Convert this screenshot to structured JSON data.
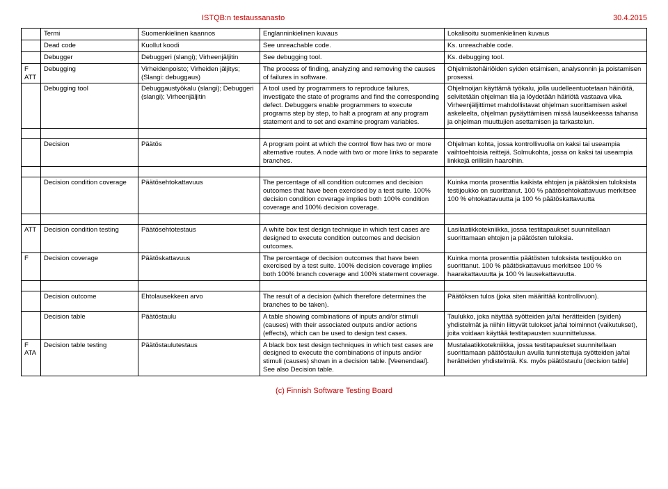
{
  "header": {
    "title": "ISTQB:n testaussanasto",
    "date": "30.4.2015"
  },
  "footer": "(c) Finnish Software Testing Board",
  "columns": [
    "",
    "Termi",
    "Suomenkielinen kaannos",
    "Englanninkielinen kuvaus",
    "Lokalisoitu suomenkielinen kuvaus"
  ],
  "groups": [
    {
      "rows": [
        {
          "c0": "",
          "c1": "Dead code",
          "c2": "Kuollut koodi",
          "c3": "See unreachable code.",
          "c4": "Ks. unreachable code."
        },
        {
          "c0": "",
          "c1": "Debugger",
          "c2": "Debuggeri (slangi); Virheenjäljitin",
          "c3": "See debugging tool.",
          "c4": "Ks. debugging tool."
        },
        {
          "c0": "F ATT",
          "c1": "Debugging",
          "c2": "Virheidenpoisto; Virheiden jäljitys; (Slangi: debuggaus)",
          "c3": "The process of finding, analyzing and removing the causes of failures in software.",
          "c4": "Ohjelmistohäiriöiden syiden etsimisen, analysonnin ja poistamisen prosessi."
        },
        {
          "c0": "",
          "c1": "Debugging tool",
          "c2": "Debuggaustyökalu (slangi); Debuggeri (slangi); Virheenjäljitin",
          "c3": "A tool used by programmers to reproduce failures, investigate the state of programs and find the corresponding defect. Debuggers enable programmers to execute programs step by step, to halt a program at any program statement and to set and examine program variables.",
          "c4": "Ohjelmoijan käyttämä työkalu, jolla uudelleentuotetaan häiriöitä, selvitetään ohjelman tila ja löydetään häiriötä vastaava vika. Virheenjäljittimet mahdollistavat ohjelman suorittamisen askel askeleelta, ohjelman pysäyttämisen missä lausekkeessa tahansa ja ohjelman muuttujien asettamisen ja tarkastelun."
        }
      ]
    },
    {
      "rows": [
        {
          "c0": "",
          "c1": "Decision",
          "c2": "Päätös",
          "c3": "A program point at which the control flow has two or more alternative routes. A node with two or more links to separate branches.",
          "c4": "Ohjelman kohta, jossa kontrollivuolla on kaksi tai useampia vaihtoehtoisia reittejä. Solmukohta, jossa on kaksi tai useampia linkkejä erillisiin haaroihin."
        }
      ]
    },
    {
      "rows": [
        {
          "c0": "",
          "c1": "Decision condition coverage",
          "c2": "Päätösehtokattavuus",
          "c3": "The percentage of all condition outcomes and decision outcomes that have been exercised by a test suite. 100% decision condition coverage implies both 100% condition coverage and 100% decision coverage.",
          "c4": "Kuinka monta prosenttia kaikista ehtojen ja päätöksien tuloksista testijoukko on suorittanut. 100 % päätösehtokattavuus merkitsee 100 % ehtokattavuutta ja 100 % päätöskattavuutta"
        }
      ]
    },
    {
      "rows": [
        {
          "c0": "ATT",
          "c1": "Decision condition testing",
          "c2": "Päätösehtotestaus",
          "c3": "A white box test design technique in which test cases are designed to execute condition outcomes and decision outcomes.",
          "c4": "Lasilaatikkotekniikka, jossa testitapaukset suunnitellaan suorittamaan ehtojen ja päätösten tuloksia."
        },
        {
          "c0": "F",
          "c1": "Decision coverage",
          "c2": "Päätöskattavuus",
          "c3": "The percentage of decision outcomes that have been exercised by a test suite. 100% decision coverage implies both 100% branch coverage and 100% statement coverage.",
          "c4": "Kuinka monta prosenttia päätösten tuloksista testijoukko on suorittanut. 100 % päätöskattavuus merkitsee 100 % haarakattavuutta ja 100 % lausekattavuutta."
        }
      ]
    },
    {
      "rows": [
        {
          "c0": "",
          "c1": "Decision outcome",
          "c2": "Ehtolausekkeen arvo",
          "c3": "The result of a decision (which therefore determines the branches to be taken).",
          "c4": "Päätöksen tulos (joka siten määrittää kontrollivuon)."
        },
        {
          "c0": "",
          "c1": "Decision table",
          "c2": "Päätöstaulu",
          "c3": "A table showing combinations of inputs and/or stimuli (causes) with their associated outputs and/or actions (effects), which can be used to design test cases.",
          "c4": "Taulukko, joka näyttää syötteiden ja/tai herätteiden (syiden) yhdistelmät ja niihin liittyvät tulokset ja/tai toiminnot (vaikutukset), joita voidaan käyttää testitapausten suunnittelussa."
        },
        {
          "c0": "F ATA",
          "c1": "Decision table testing",
          "c2": "Päätöstaulutestaus",
          "c3": "A black box test design techniques in which test cases are designed to execute the combinations of inputs and/or stimuli (causes) shown in a decision table. [Veenendaal]. See also Decision table.",
          "c4": "Mustalaatikkotekniikka, jossa testitapaukset suunnitellaan suorittamaan päätöstaulun avulla tunnistettuja syötteiden ja/tai herätteiden yhdistelmiä. Ks. myös päätöstaulu [decision table]"
        }
      ]
    }
  ]
}
